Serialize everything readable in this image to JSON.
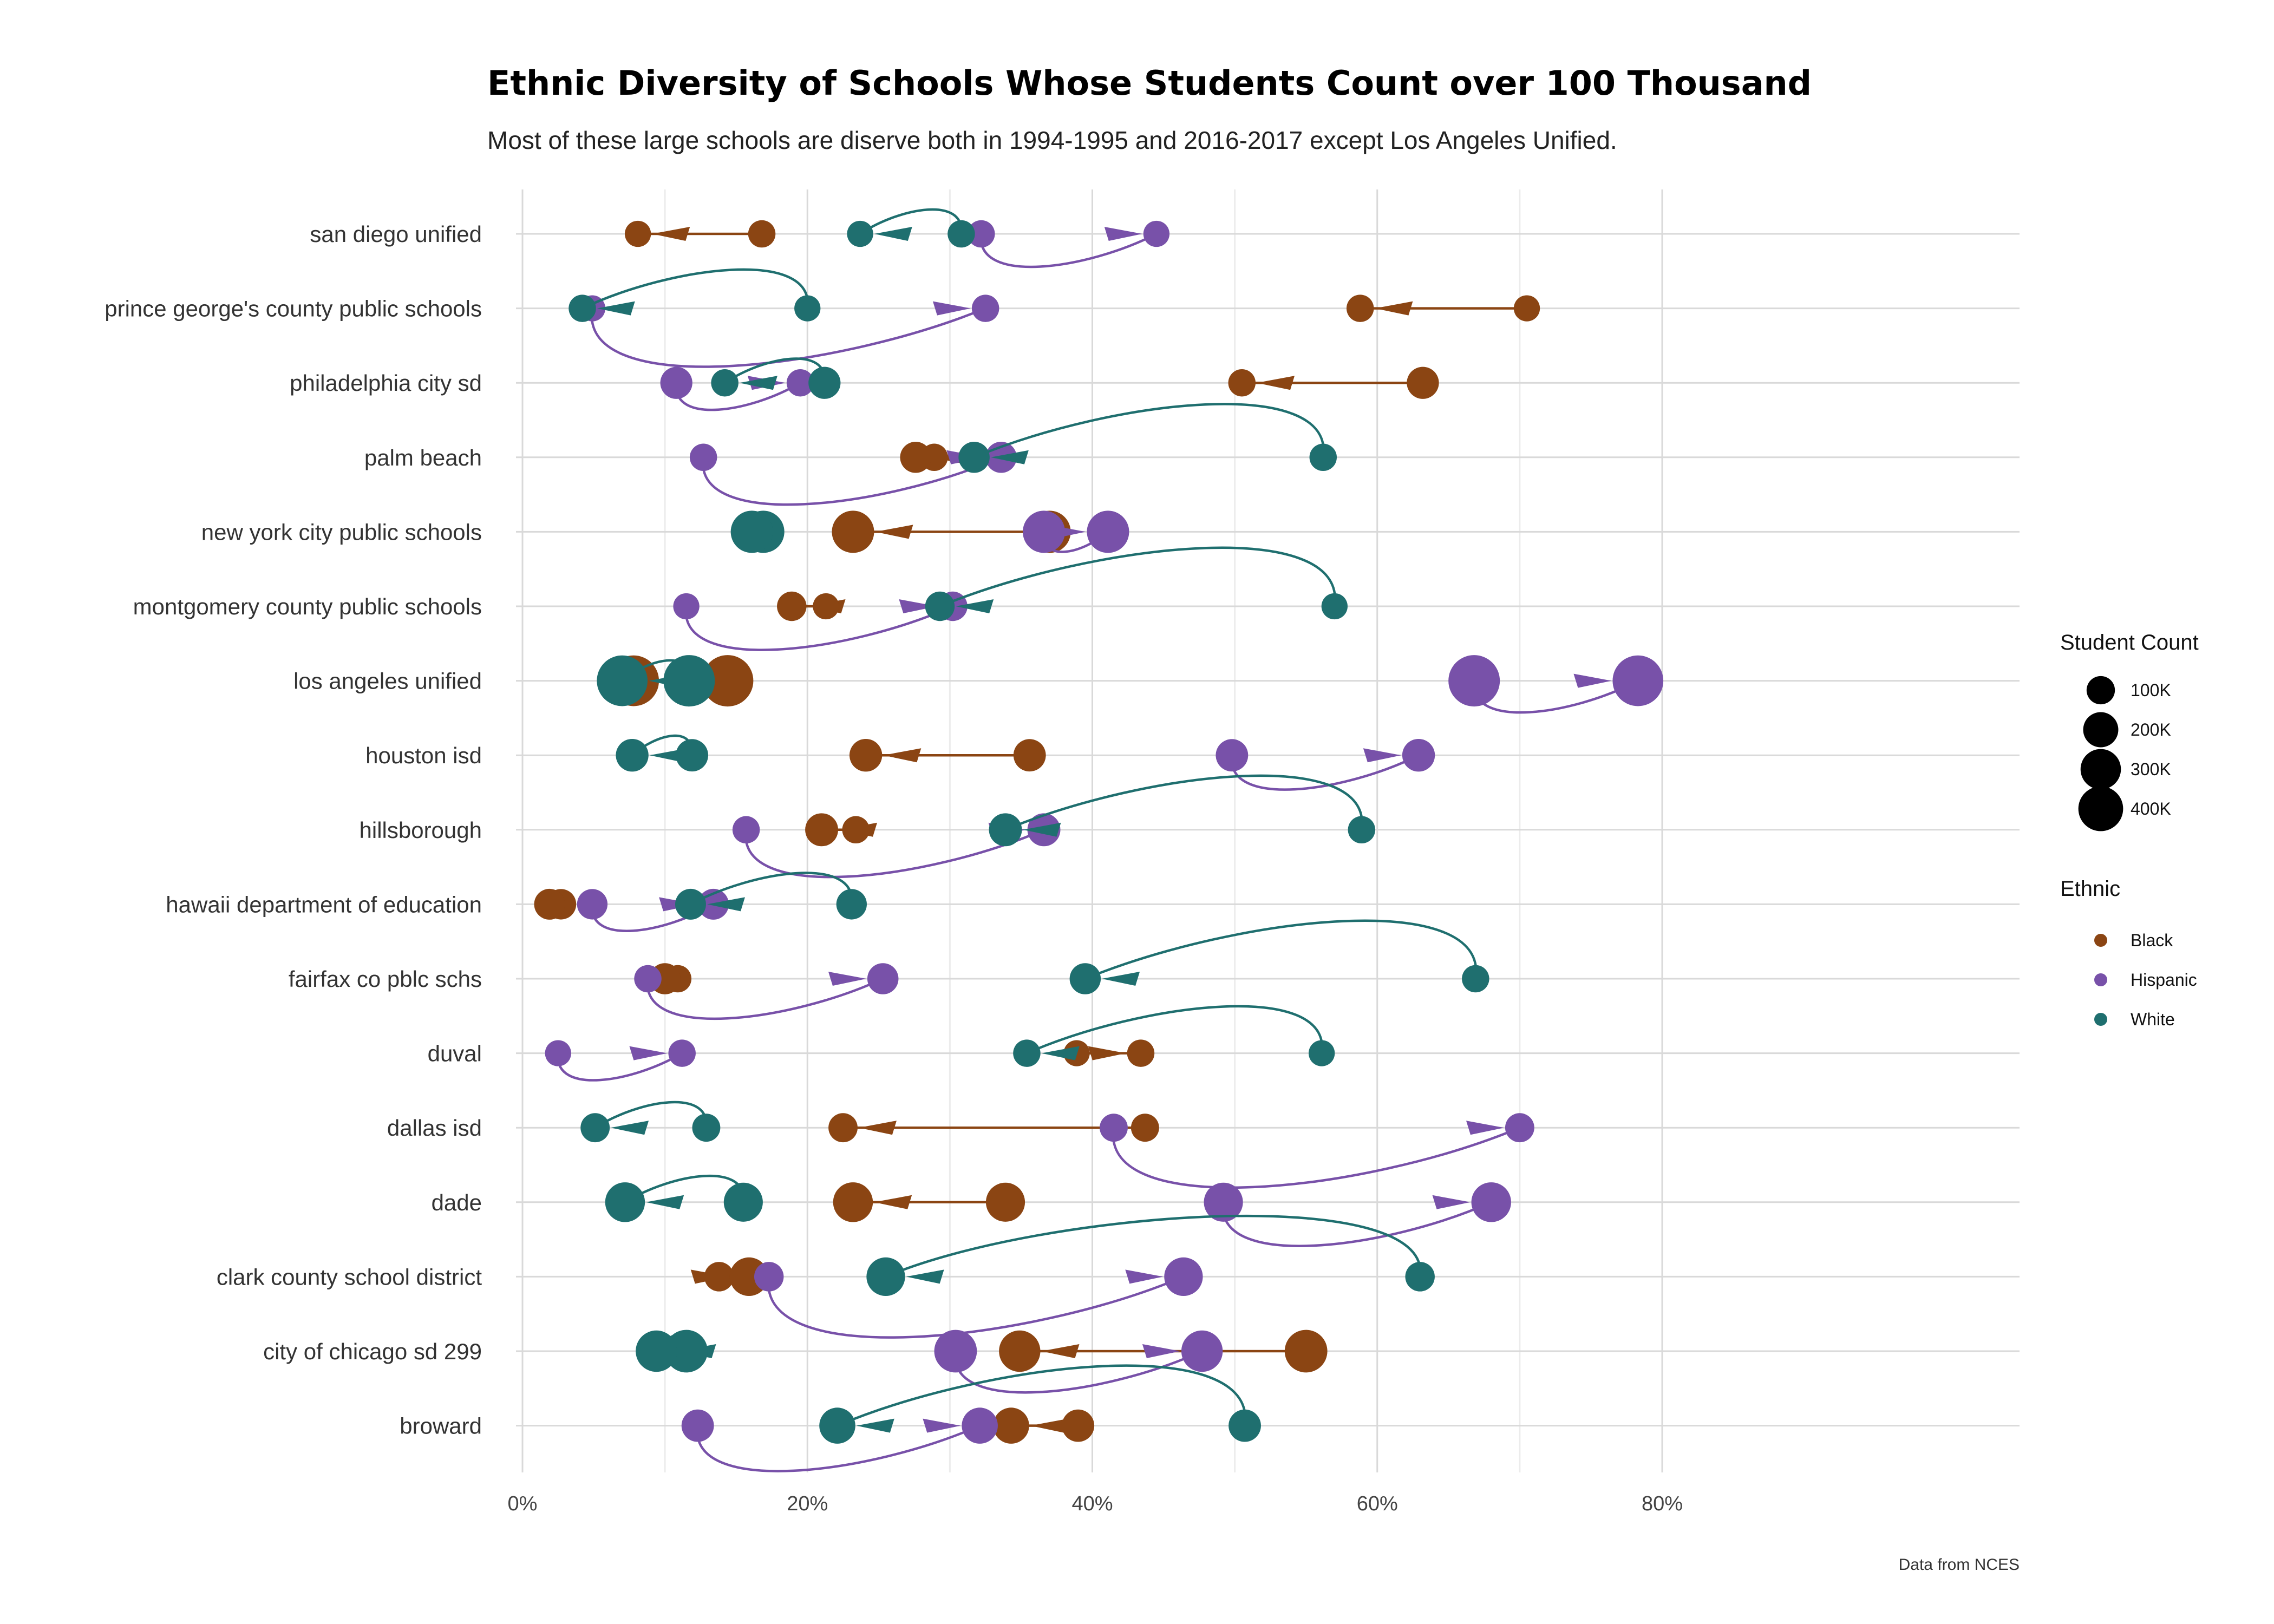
{
  "chart_data": {
    "type": "scatter",
    "title": "Ethnic Diversity of Schools Whose Students Count over 100 Thousand",
    "subtitle": "Most of these large schools are diserve both in 1994-1995 and 2016-2017 except Los Angeles Unified.",
    "caption": "Data from NCES",
    "xlim": [
      0,
      82
    ],
    "x_ticks": [
      0,
      20,
      40,
      60,
      80
    ],
    "x_tick_labels": [
      "0%",
      "20%",
      "40%",
      "60%",
      "80%"
    ],
    "grid": true,
    "legend_position": "right",
    "size_legend": {
      "title": "Student Count",
      "entries": [
        {
          "label": "100K",
          "value": 100
        },
        {
          "label": "200K",
          "value": 200
        },
        {
          "label": "300K",
          "value": 300
        },
        {
          "label": "400K",
          "value": 400
        }
      ]
    },
    "color_legend": {
      "title": "Ethnic",
      "entries": [
        {
          "label": "Black",
          "color": "#8B4513"
        },
        {
          "label": "Hispanic",
          "color": "#7851A9"
        },
        {
          "label": "White",
          "color": "#1F6F6F"
        }
      ]
    },
    "schools": [
      {
        "name": "san diego unified",
        "black": [
          16.8,
          8.1
        ],
        "hispanic": [
          32.2,
          44.5
        ],
        "white": [
          30.8,
          23.7
        ],
        "size": [
          130,
          115
        ]
      },
      {
        "name": "prince george's county public schools",
        "black": [
          70.5,
          58.8
        ],
        "hispanic": [
          4.9,
          32.5
        ],
        "white": [
          20.0,
          4.2
        ],
        "size": [
          115,
          130
        ]
      },
      {
        "name": "philadelphia city sd",
        "black": [
          63.2,
          50.5
        ],
        "hispanic": [
          10.8,
          19.5
        ],
        "white": [
          21.2,
          14.2
        ],
        "size": [
          200,
          130
        ]
      },
      {
        "name": "palm beach",
        "black": [
          28.9,
          27.6
        ],
        "hispanic": [
          12.7,
          33.6
        ],
        "white": [
          56.2,
          31.7
        ],
        "size": [
          130,
          185
        ]
      },
      {
        "name": "new york city public schools",
        "black": [
          37.0,
          23.2
        ],
        "hispanic": [
          36.6,
          41.1
        ],
        "white": [
          16.9,
          16.1
        ],
        "size": [
          400,
          400
        ]
      },
      {
        "name": "montgomery county public schools",
        "black": [
          21.3,
          18.9
        ],
        "hispanic": [
          11.5,
          30.2
        ],
        "white": [
          57.0,
          29.3
        ],
        "size": [
          115,
          160
        ]
      },
      {
        "name": "los angeles unified",
        "black": [
          14.4,
          7.8
        ],
        "hispanic": [
          66.8,
          78.3
        ],
        "white": [
          11.7,
          7.0
        ],
        "size": [
          640,
          620
        ]
      },
      {
        "name": "houston isd",
        "black": [
          35.6,
          24.1
        ],
        "hispanic": [
          49.8,
          62.9
        ],
        "white": [
          11.9,
          7.7
        ],
        "size": [
          205,
          210
        ]
      },
      {
        "name": "hillsborough",
        "black": [
          23.4,
          21.0
        ],
        "hispanic": [
          15.7,
          36.6
        ],
        "white": [
          58.9,
          33.9
        ],
        "size": [
          130,
          215
        ]
      },
      {
        "name": "hawaii department of education",
        "black": [
          2.7,
          1.9
        ],
        "hispanic": [
          4.9,
          13.4
        ],
        "white": [
          23.1,
          11.8
        ],
        "size": [
          175,
          180
        ]
      },
      {
        "name": "fairfax co pblc schs",
        "black": [
          10.9,
          10.0
        ],
        "hispanic": [
          8.8,
          25.3
        ],
        "white": [
          66.9,
          39.5
        ],
        "size": [
          130,
          185
        ]
      },
      {
        "name": "duval",
        "black": [
          38.9,
          43.4
        ],
        "hispanic": [
          2.5,
          11.2
        ],
        "white": [
          56.1,
          35.4
        ],
        "size": [
          115,
          130
        ]
      },
      {
        "name": "dallas isd",
        "black": [
          43.7,
          22.5
        ],
        "hispanic": [
          41.5,
          70.0
        ],
        "white": [
          12.9,
          5.1
        ],
        "size": [
          140,
          155
        ]
      },
      {
        "name": "dade",
        "black": [
          33.9,
          23.2
        ],
        "hispanic": [
          49.2,
          68.0
        ],
        "white": [
          15.5,
          7.2
        ],
        "size": [
          330,
          345
        ]
      },
      {
        "name": "clark county school district",
        "black": [
          13.8,
          15.9
        ],
        "hispanic": [
          17.3,
          46.4
        ],
        "white": [
          63.0,
          25.5
        ],
        "size": [
          160,
          320
        ]
      },
      {
        "name": "city of chicago sd 299",
        "black": [
          55.0,
          34.9
        ],
        "hispanic": [
          30.4,
          47.7
        ],
        "white": [
          11.5,
          9.4
        ],
        "size": [
          410,
          380
        ]
      },
      {
        "name": "broward",
        "black": [
          39.0,
          34.3
        ],
        "hispanic": [
          12.3,
          32.1
        ],
        "white": [
          50.7,
          22.1
        ],
        "size": [
          205,
          270
        ]
      }
    ]
  }
}
